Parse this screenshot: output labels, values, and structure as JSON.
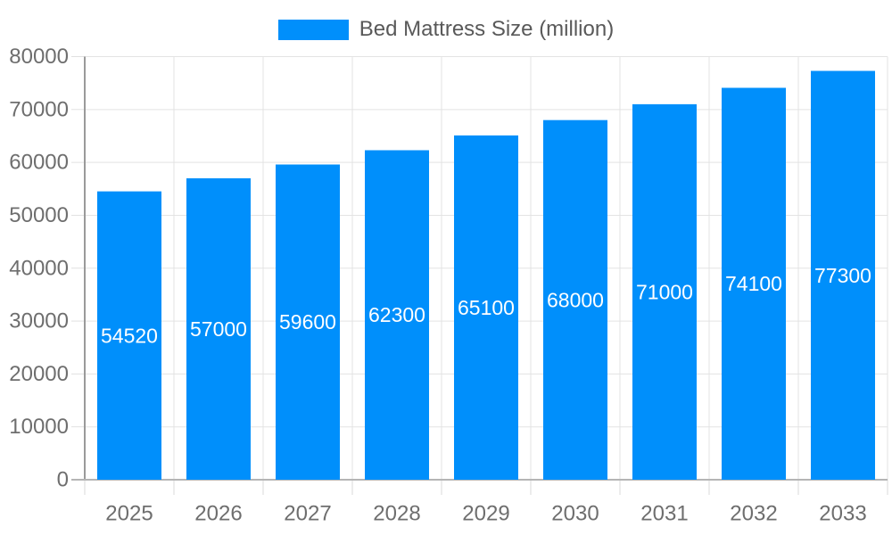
{
  "chart_data": {
    "type": "bar",
    "title": "Bed Mattress Size (million)",
    "legend": {
      "position": "top",
      "entries": [
        "Bed Mattress Size (million)"
      ]
    },
    "categories": [
      "2025",
      "2026",
      "2027",
      "2028",
      "2029",
      "2030",
      "2031",
      "2032",
      "2033"
    ],
    "series": [
      {
        "name": "Bed Mattress Size (million)",
        "values": [
          54520,
          57000,
          59600,
          62300,
          65100,
          68000,
          71000,
          74100,
          77300
        ]
      }
    ],
    "data_labels": [
      "54520",
      "57000",
      "59600",
      "62300",
      "65100",
      "68000",
      "71000",
      "74100",
      "77300"
    ],
    "xlabel": "",
    "ylabel": "",
    "ylim": [
      0,
      80000
    ],
    "ytick_step": 10000,
    "ytick_labels": [
      "0",
      "10000",
      "20000",
      "30000",
      "40000",
      "50000",
      "60000",
      "70000",
      "80000"
    ],
    "grid": true,
    "colors": {
      "bar": "#008FFB",
      "bar_label": "#ffffff",
      "axis_label": "#6e6e6e",
      "legend_text": "#595959",
      "grid_line": "#e3e3e3",
      "y_axis_line": "#9a9a9a",
      "x_axis_line": "#b5b5b5",
      "y_tick": "#e0e0e0",
      "x_tick": "#d9d9d9",
      "background": "#ffffff"
    }
  }
}
